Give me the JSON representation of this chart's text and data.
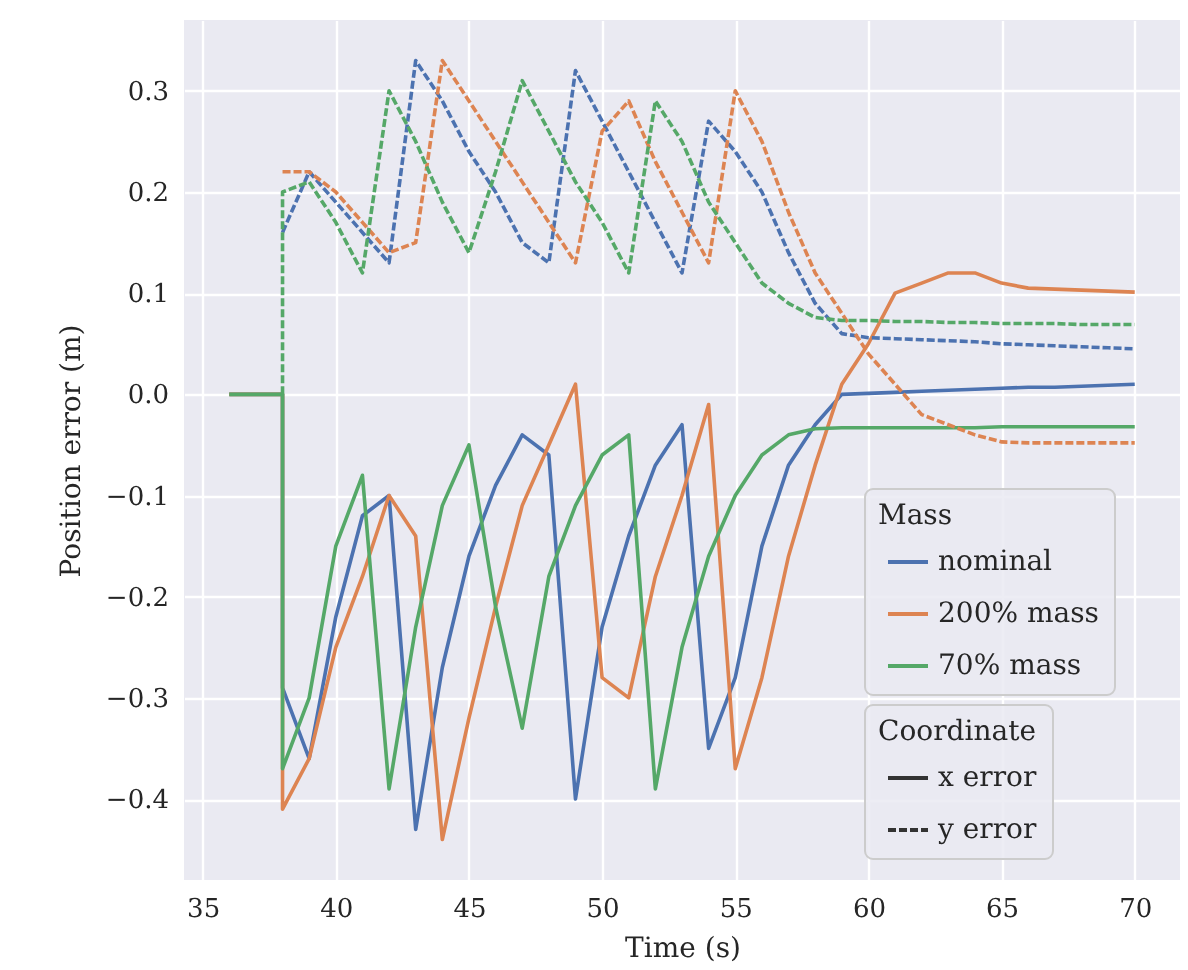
{
  "chart_data": {
    "type": "line",
    "xlabel": "Time (s)",
    "ylabel": "Position error (m)",
    "legend_title": "Mass",
    "annotations": [
      "Coordinate",
      "x error",
      "y error"
    ],
    "legend": "bottom right",
    "grid": true,
    "xlim": [
      34.3,
      71.7
    ],
    "xticks": [
      35,
      40,
      45,
      50,
      55,
      60,
      65,
      70
    ],
    "ylim": [
      -0.48,
      0.37
    ],
    "yticks": [
      {
        "value": -0.4,
        "label": "−0.4"
      },
      {
        "value": -0.3,
        "label": "−0.3"
      },
      {
        "value": -0.2,
        "label": "−0.2"
      },
      {
        "value": -0.1,
        "label": "−0.1"
      },
      {
        "value": 0,
        "label": "0.0"
      },
      0.1,
      0.2,
      0.3
    ],
    "x": [
      36,
      37,
      38,
      38,
      39,
      40,
      41,
      42,
      43,
      44,
      45,
      46,
      47,
      48,
      49,
      50,
      51,
      52,
      53,
      54,
      55,
      56,
      57,
      58,
      59,
      60,
      61,
      62,
      63,
      64,
      65,
      66,
      67,
      68,
      69,
      70
    ],
    "series": [
      {
        "name": "nominal",
        "color": "#4c72b0",
        "line_style": "solid",
        "values": [
          0,
          0,
          0,
          -0.29,
          -0.36,
          -0.22,
          -0.12,
          -0.1,
          -0.43,
          -0.27,
          -0.16,
          -0.09,
          -0.04,
          -0.06,
          -0.4,
          -0.23,
          -0.14,
          -0.07,
          -0.03,
          -0.35,
          -0.28,
          -0.15,
          -0.07,
          -0.03,
          0,
          0.001,
          0.002,
          0.003,
          0.004,
          0.005,
          0.006,
          0.007,
          0.007,
          0.008,
          0.009,
          0.01
        ]
      },
      {
        "name": "200% mass",
        "color": "#dd8452",
        "line_style": "solid",
        "values": [
          0,
          0,
          0,
          -0.41,
          -0.36,
          -0.25,
          -0.18,
          -0.1,
          -0.14,
          -0.44,
          -0.32,
          -0.21,
          -0.11,
          -0.05,
          0.01,
          -0.28,
          -0.3,
          -0.18,
          -0.1,
          -0.01,
          -0.37,
          -0.28,
          -0.16,
          -0.07,
          0.01,
          0.05,
          0.1,
          0.11,
          0.12,
          0.12,
          0.11,
          0.105,
          0.104,
          0.103,
          0.102,
          0.101
        ]
      },
      {
        "name": "70% mass",
        "color": "#55a868",
        "line_style": "solid",
        "values": [
          0,
          0,
          0,
          -0.37,
          -0.3,
          -0.15,
          -0.08,
          -0.39,
          -0.23,
          -0.11,
          -0.05,
          -0.21,
          -0.33,
          -0.18,
          -0.11,
          -0.06,
          -0.04,
          -0.39,
          -0.25,
          -0.16,
          -0.1,
          -0.06,
          -0.04,
          -0.034,
          -0.033,
          -0.033,
          -0.033,
          -0.033,
          -0.033,
          -0.033,
          -0.032,
          -0.032,
          -0.032,
          -0.032,
          -0.032,
          -0.032
        ]
      },
      {
        "color": "#4c72b0",
        "line_style": "dashed",
        "values": [
          null,
          null,
          null,
          0.16,
          0.22,
          0.19,
          0.16,
          0.13,
          0.33,
          0.29,
          0.24,
          0.2,
          0.15,
          0.13,
          0.32,
          0.27,
          0.22,
          0.17,
          0.12,
          0.27,
          0.24,
          0.2,
          0.14,
          0.09,
          0.06,
          0.056,
          0.055,
          0.054,
          0.053,
          0.052,
          0.05,
          0.049,
          0.048,
          0.047,
          0.046,
          0.045
        ]
      },
      {
        "color": "#dd8452",
        "line_style": "dashed",
        "values": [
          null,
          null,
          null,
          0.22,
          0.22,
          0.2,
          0.17,
          0.14,
          0.15,
          0.33,
          0.29,
          0.25,
          0.21,
          0.17,
          0.13,
          0.26,
          0.29,
          0.23,
          0.18,
          0.13,
          0.3,
          0.25,
          0.18,
          0.12,
          0.08,
          0.04,
          0.01,
          -0.02,
          -0.03,
          -0.04,
          -0.047,
          -0.048,
          -0.048,
          -0.048,
          -0.048,
          -0.048
        ]
      },
      {
        "color": "#55a868",
        "line_style": "dashed",
        "values": [
          null,
          null,
          0,
          0.2,
          0.21,
          0.17,
          0.12,
          0.3,
          0.25,
          0.19,
          0.14,
          0.22,
          0.31,
          0.26,
          0.21,
          0.17,
          0.12,
          0.29,
          0.25,
          0.19,
          0.15,
          0.11,
          0.09,
          0.076,
          0.073,
          0.073,
          0.072,
          0.072,
          0.071,
          0.071,
          0.07,
          0.07,
          0.07,
          0.069,
          0.069,
          0.069
        ]
      }
    ]
  }
}
